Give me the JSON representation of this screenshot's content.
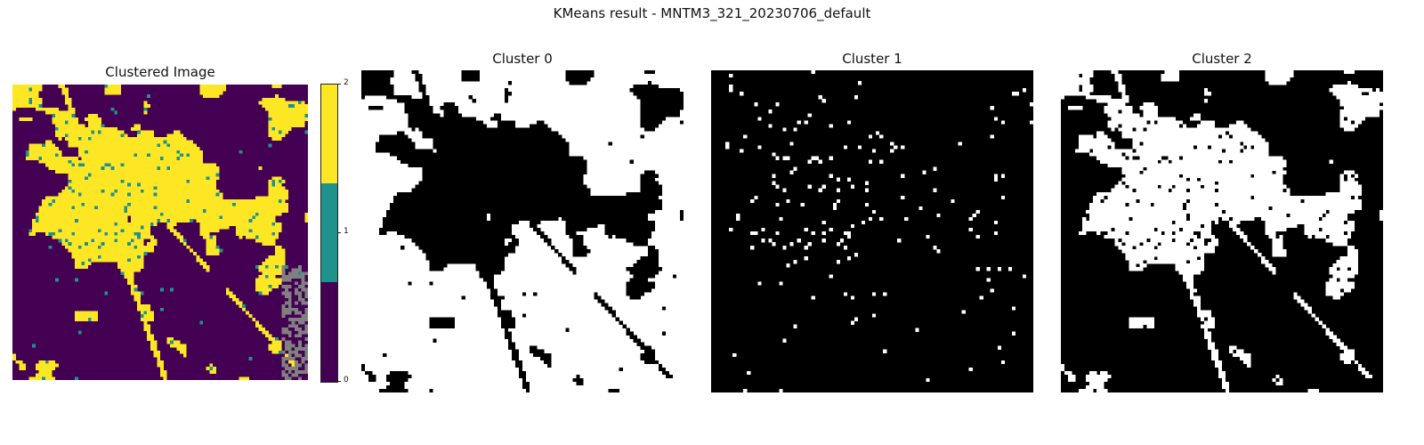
{
  "suptitle": "KMeans result - MNTM3_321_20230706_default",
  "chart_data": {
    "type": "heatmap",
    "suptitle": "KMeans result - MNTM3_321_20230706_default",
    "n_clusters": 3,
    "panels": [
      {
        "title": "Clustered Image",
        "colormap": "viridis (3 discrete levels)"
      },
      {
        "title": "Cluster 0",
        "colormap": "binary (white = member)"
      },
      {
        "title": "Cluster 1",
        "colormap": "binary (white = member)"
      },
      {
        "title": "Cluster 2",
        "colormap": "binary (white = member)"
      }
    ],
    "colorbar": {
      "ticks": [
        "0",
        "1",
        "2"
      ],
      "range": [
        0,
        2
      ],
      "colors": [
        "#440154",
        "#21918c",
        "#fde725"
      ]
    },
    "nodata_color": "#808080",
    "approx_coverage": {
      "cluster_0": 0.72,
      "cluster_1": 0.01,
      "cluster_2": 0.27
    }
  }
}
